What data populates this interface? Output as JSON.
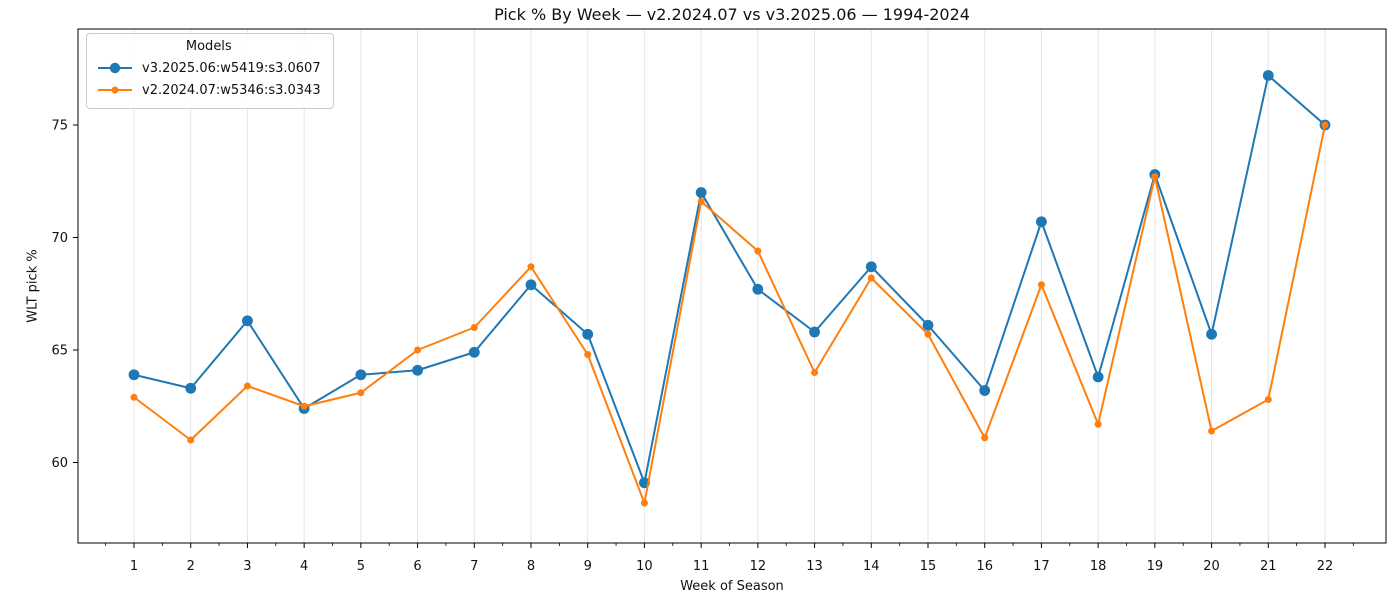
{
  "chart_data": {
    "type": "line",
    "title": "Pick % By Week — v2.2024.07 vs v3.2025.06 — 1994-2024",
    "xlabel": "Week of Season",
    "ylabel": "WLT pick %",
    "x": [
      1,
      2,
      3,
      4,
      5,
      6,
      7,
      8,
      9,
      10,
      11,
      12,
      13,
      14,
      15,
      16,
      17,
      18,
      19,
      20,
      21,
      22
    ],
    "x_ticks": [
      1,
      2,
      3,
      4,
      5,
      6,
      7,
      8,
      9,
      10,
      11,
      12,
      13,
      14,
      15,
      16,
      17,
      18,
      19,
      20,
      21,
      22
    ],
    "y_ticks": [
      60,
      65,
      70,
      75
    ],
    "xlim": [
      0,
      23.1
    ],
    "ylim": [
      56.4,
      79.3
    ],
    "grid": "vertical",
    "legend": {
      "title": "Models",
      "position": "upper-left"
    },
    "series": [
      {
        "name": "v3.2025.06:w5419:s3.0607",
        "color": "#1f77b4",
        "marker": "circle-large",
        "values": [
          63.9,
          63.3,
          66.3,
          62.4,
          63.9,
          64.1,
          64.9,
          67.9,
          65.7,
          59.1,
          72.0,
          67.7,
          65.8,
          68.7,
          66.1,
          63.2,
          70.7,
          63.8,
          72.8,
          65.7,
          77.2,
          75.0
        ]
      },
      {
        "name": "v2.2024.07:w5346:s3.0343",
        "color": "#ff7f0e",
        "marker": "circle-small",
        "values": [
          62.9,
          61.0,
          63.4,
          62.5,
          63.1,
          65.0,
          66.0,
          68.7,
          64.8,
          58.2,
          71.6,
          69.4,
          64.0,
          68.2,
          65.7,
          61.1,
          67.9,
          61.7,
          72.7,
          61.4,
          62.8,
          75.0
        ]
      }
    ]
  }
}
